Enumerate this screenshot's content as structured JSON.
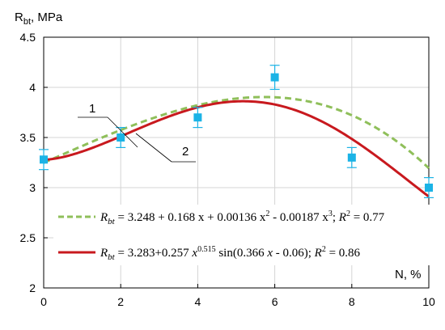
{
  "chart_data": {
    "type": "scatter",
    "title": "",
    "xlabel": "N, %",
    "ylabel": "R_bt, MPa",
    "ylabel_main": "R",
    "ylabel_sub": "bt",
    "ylabel_unit": ", MPa",
    "xlim": [
      0,
      10
    ],
    "ylim": [
      2,
      4.5
    ],
    "x_ticks": [
      0,
      2,
      4,
      6,
      8,
      10
    ],
    "y_ticks": [
      2,
      2.5,
      3,
      3.5,
      4,
      4.5
    ],
    "x_tick_labels": [
      "0",
      "2",
      "4",
      "6",
      "8",
      "10"
    ],
    "y_tick_labels": [
      "2",
      "2.5",
      "3",
      "3.5",
      "4",
      "4.5"
    ],
    "grid": true,
    "colors": {
      "points": "#1bb3e6",
      "curve1": "#8fbf5a",
      "curve2": "#c8191e",
      "grid": "#d4d4d4"
    },
    "points": {
      "x": [
        0,
        2,
        4,
        6,
        8,
        10
      ],
      "y": [
        3.28,
        3.5,
        3.7,
        4.1,
        3.3,
        3.0
      ],
      "err": [
        0.1,
        0.1,
        0.1,
        0.12,
        0.1,
        0.1
      ]
    },
    "series": [
      {
        "id": "1",
        "style": "dashed",
        "equation": {
          "lhs": "R",
          "sub": "bt",
          "rhs": " = 3.248 + 0.168 x + 0.00136 x",
          "sup1": "2",
          "mid": " - 0.00187 x",
          "sup2": "3",
          "tail": ";   ",
          "r2_label": "R",
          "r2_sup": "2",
          "r2_value": " = 0.77"
        },
        "coefficients": [
          3.248,
          0.168,
          0.00136,
          -0.00187
        ]
      },
      {
        "id": "2",
        "style": "solid",
        "equation": {
          "lhs": "R",
          "sub": "bt",
          "rhs": " = 3.283+0.257 ",
          "xvar": "x",
          "sup1": "0.515",
          "mid": " sin(0.366 ",
          "xvar2": "x",
          "tail": " - 0.06);  ",
          "r2_label": "R",
          "r2_sup": "2",
          "r2_value": " = 0.86"
        },
        "params": {
          "a": 3.283,
          "b": 0.257,
          "p": 0.515,
          "k": 0.366,
          "phi": -0.06
        }
      }
    ],
    "callouts": [
      "1",
      "2"
    ]
  }
}
